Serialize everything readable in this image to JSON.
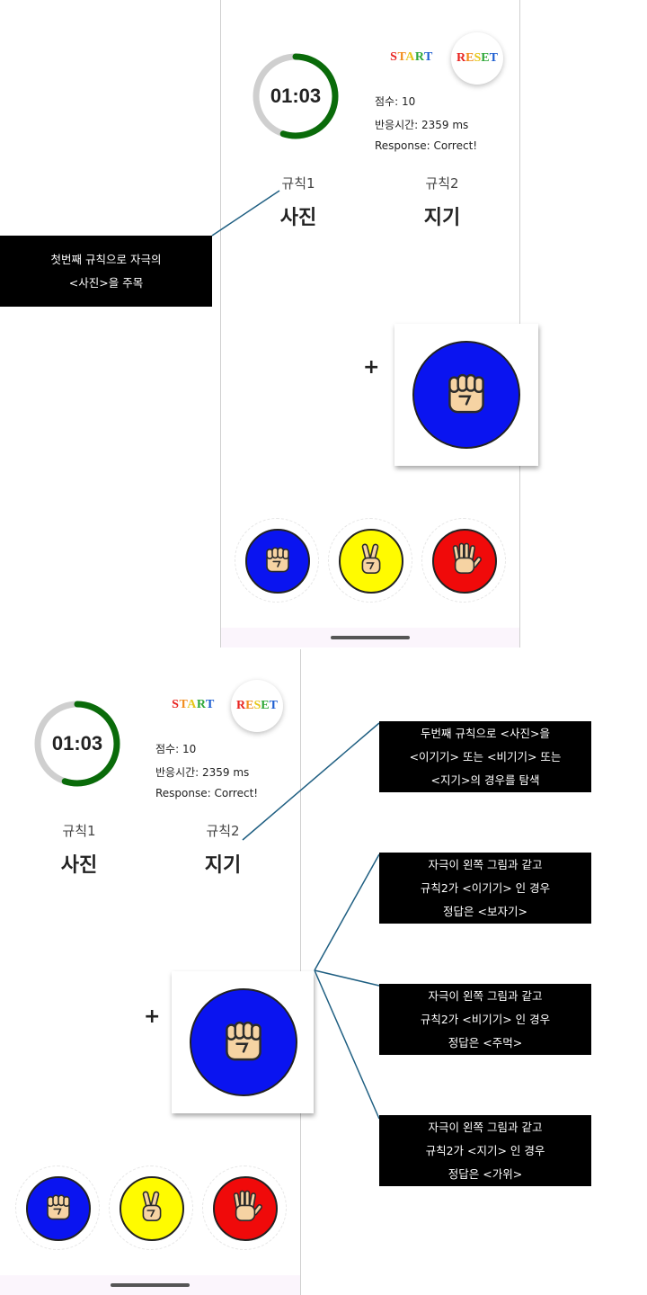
{
  "screen": {
    "timer": "01:03",
    "timer_progress": 0.55,
    "start_label": "START",
    "reset_label": "RESET",
    "score": "점수: 10",
    "reaction_time": "반응시간: 2359 ms",
    "response": "Response: Correct!",
    "rule1_label": "규칙1",
    "rule1_value": "사진",
    "rule2_label": "규칙2",
    "rule2_value": "지기",
    "plus": "+",
    "stimulus": {
      "color": "#0a14f0",
      "hand": "rock-fist-icon"
    },
    "choices": [
      {
        "color": "#0a14f0",
        "hand": "rock-fist-icon"
      },
      {
        "color": "#fffb00",
        "hand": "scissors-hand-icon"
      },
      {
        "color": "#f00a0a",
        "hand": "paper-hand-icon"
      }
    ]
  },
  "annotations": {
    "rule1_note": [
      "첫번째 규칙으로 자극의",
      "<사진>을 주목"
    ],
    "rule2_note": [
      "두번째 규칙으로 <사진>을",
      "<이기기> 또는 <비기기> 또는",
      "<지기>의 경우를 탐색"
    ],
    "case_win": [
      "자극이 왼쪽 그림과 같고",
      "규칙2가 <이기기> 인 경우",
      "정답은 <보자기>"
    ],
    "case_draw": [
      "자극이 왼쪽 그림과 같고",
      "규칙2가 <비기기> 인 경우",
      "정답은 <주먹>"
    ],
    "case_lose": [
      "자극이 왼쪽 그림과 같고",
      "규칙2가 <지기> 인 경우",
      "정답은 <가위>"
    ]
  },
  "colors": {
    "timer_track": "#cfcfcf",
    "timer_progress": "#0a6b0a",
    "connector": "#1f5f82",
    "note_bg": "#000000"
  }
}
